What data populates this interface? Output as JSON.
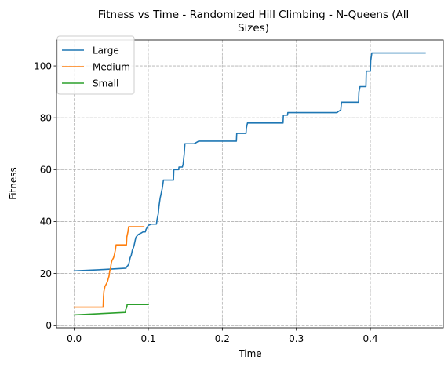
{
  "chart_data": {
    "type": "line",
    "title_lines": [
      "Fitness vs Time - Randomized Hill Climbing - N-Queens (All",
      "Sizes)"
    ],
    "xlabel": "Time",
    "ylabel": "Fitness",
    "xlim": [
      -0.024,
      0.4985
    ],
    "ylim": [
      -1.0,
      110.0
    ],
    "xticks": [
      0.0,
      0.1,
      0.2,
      0.3,
      0.4
    ],
    "xtick_labels": [
      "0.0",
      "0.1",
      "0.2",
      "0.3",
      "0.4"
    ],
    "yticks": [
      0,
      20,
      40,
      60,
      80,
      100
    ],
    "ytick_labels": [
      "0",
      "20",
      "40",
      "60",
      "80",
      "100"
    ],
    "grid": true,
    "legend_position": "upper-left",
    "series": [
      {
        "name": "Large",
        "color": "#1f77b4",
        "points": [
          [
            0.0,
            21
          ],
          [
            0.04,
            21.5
          ],
          [
            0.07,
            22
          ],
          [
            0.0705,
            22.5
          ],
          [
            0.0725,
            23
          ],
          [
            0.074,
            24
          ],
          [
            0.0755,
            26
          ],
          [
            0.077,
            27
          ],
          [
            0.0785,
            29
          ],
          [
            0.08,
            30
          ],
          [
            0.081,
            31
          ],
          [
            0.0825,
            33
          ],
          [
            0.0835,
            34
          ],
          [
            0.085,
            34.5
          ],
          [
            0.0865,
            35
          ],
          [
            0.09,
            35.5
          ],
          [
            0.093,
            36
          ],
          [
            0.096,
            36
          ],
          [
            0.097,
            37
          ],
          [
            0.099,
            38
          ],
          [
            0.1,
            38.5
          ],
          [
            0.104,
            39
          ],
          [
            0.11,
            39
          ],
          [
            0.111,
            39
          ],
          [
            0.112,
            41
          ],
          [
            0.1135,
            43
          ],
          [
            0.1145,
            46
          ],
          [
            0.116,
            49
          ],
          [
            0.1175,
            51
          ],
          [
            0.119,
            53
          ],
          [
            0.1205,
            56
          ],
          [
            0.134,
            56
          ],
          [
            0.1345,
            60
          ],
          [
            0.141,
            60
          ],
          [
            0.1415,
            61
          ],
          [
            0.146,
            61
          ],
          [
            0.147,
            62
          ],
          [
            0.1485,
            66
          ],
          [
            0.1495,
            70
          ],
          [
            0.162,
            70
          ],
          [
            0.168,
            71
          ],
          [
            0.219,
            71
          ],
          [
            0.2195,
            74
          ],
          [
            0.232,
            74
          ],
          [
            0.2325,
            76
          ],
          [
            0.234,
            78
          ],
          [
            0.282,
            78
          ],
          [
            0.2825,
            81
          ],
          [
            0.288,
            81
          ],
          [
            0.2885,
            82
          ],
          [
            0.355,
            82
          ],
          [
            0.357,
            82.5
          ],
          [
            0.36,
            83
          ],
          [
            0.361,
            86
          ],
          [
            0.384,
            86
          ],
          [
            0.3845,
            90
          ],
          [
            0.386,
            92
          ],
          [
            0.394,
            92
          ],
          [
            0.3945,
            98
          ],
          [
            0.4,
            98
          ],
          [
            0.4005,
            102
          ],
          [
            0.402,
            105
          ],
          [
            0.474,
            105
          ]
        ]
      },
      {
        "name": "Medium",
        "color": "#ff7f0e",
        "points": [
          [
            0.0,
            7
          ],
          [
            0.039,
            7
          ],
          [
            0.0395,
            11
          ],
          [
            0.04,
            13
          ],
          [
            0.0415,
            15
          ],
          [
            0.0435,
            16
          ],
          [
            0.045,
            17
          ],
          [
            0.046,
            18
          ],
          [
            0.047,
            19
          ],
          [
            0.048,
            21
          ],
          [
            0.049,
            22
          ],
          [
            0.05,
            24
          ],
          [
            0.051,
            25
          ],
          [
            0.053,
            26
          ],
          [
            0.054,
            27
          ],
          [
            0.0555,
            29
          ],
          [
            0.0565,
            31
          ],
          [
            0.0705,
            31
          ],
          [
            0.071,
            34
          ],
          [
            0.0725,
            36
          ],
          [
            0.0735,
            38
          ],
          [
            0.094,
            38
          ]
        ]
      },
      {
        "name": "Small",
        "color": "#2ca02c",
        "points": [
          [
            0.0,
            4
          ],
          [
            0.069,
            5
          ],
          [
            0.0695,
            6
          ],
          [
            0.071,
            7
          ],
          [
            0.0715,
            8
          ],
          [
            0.1,
            8
          ]
        ]
      }
    ]
  }
}
